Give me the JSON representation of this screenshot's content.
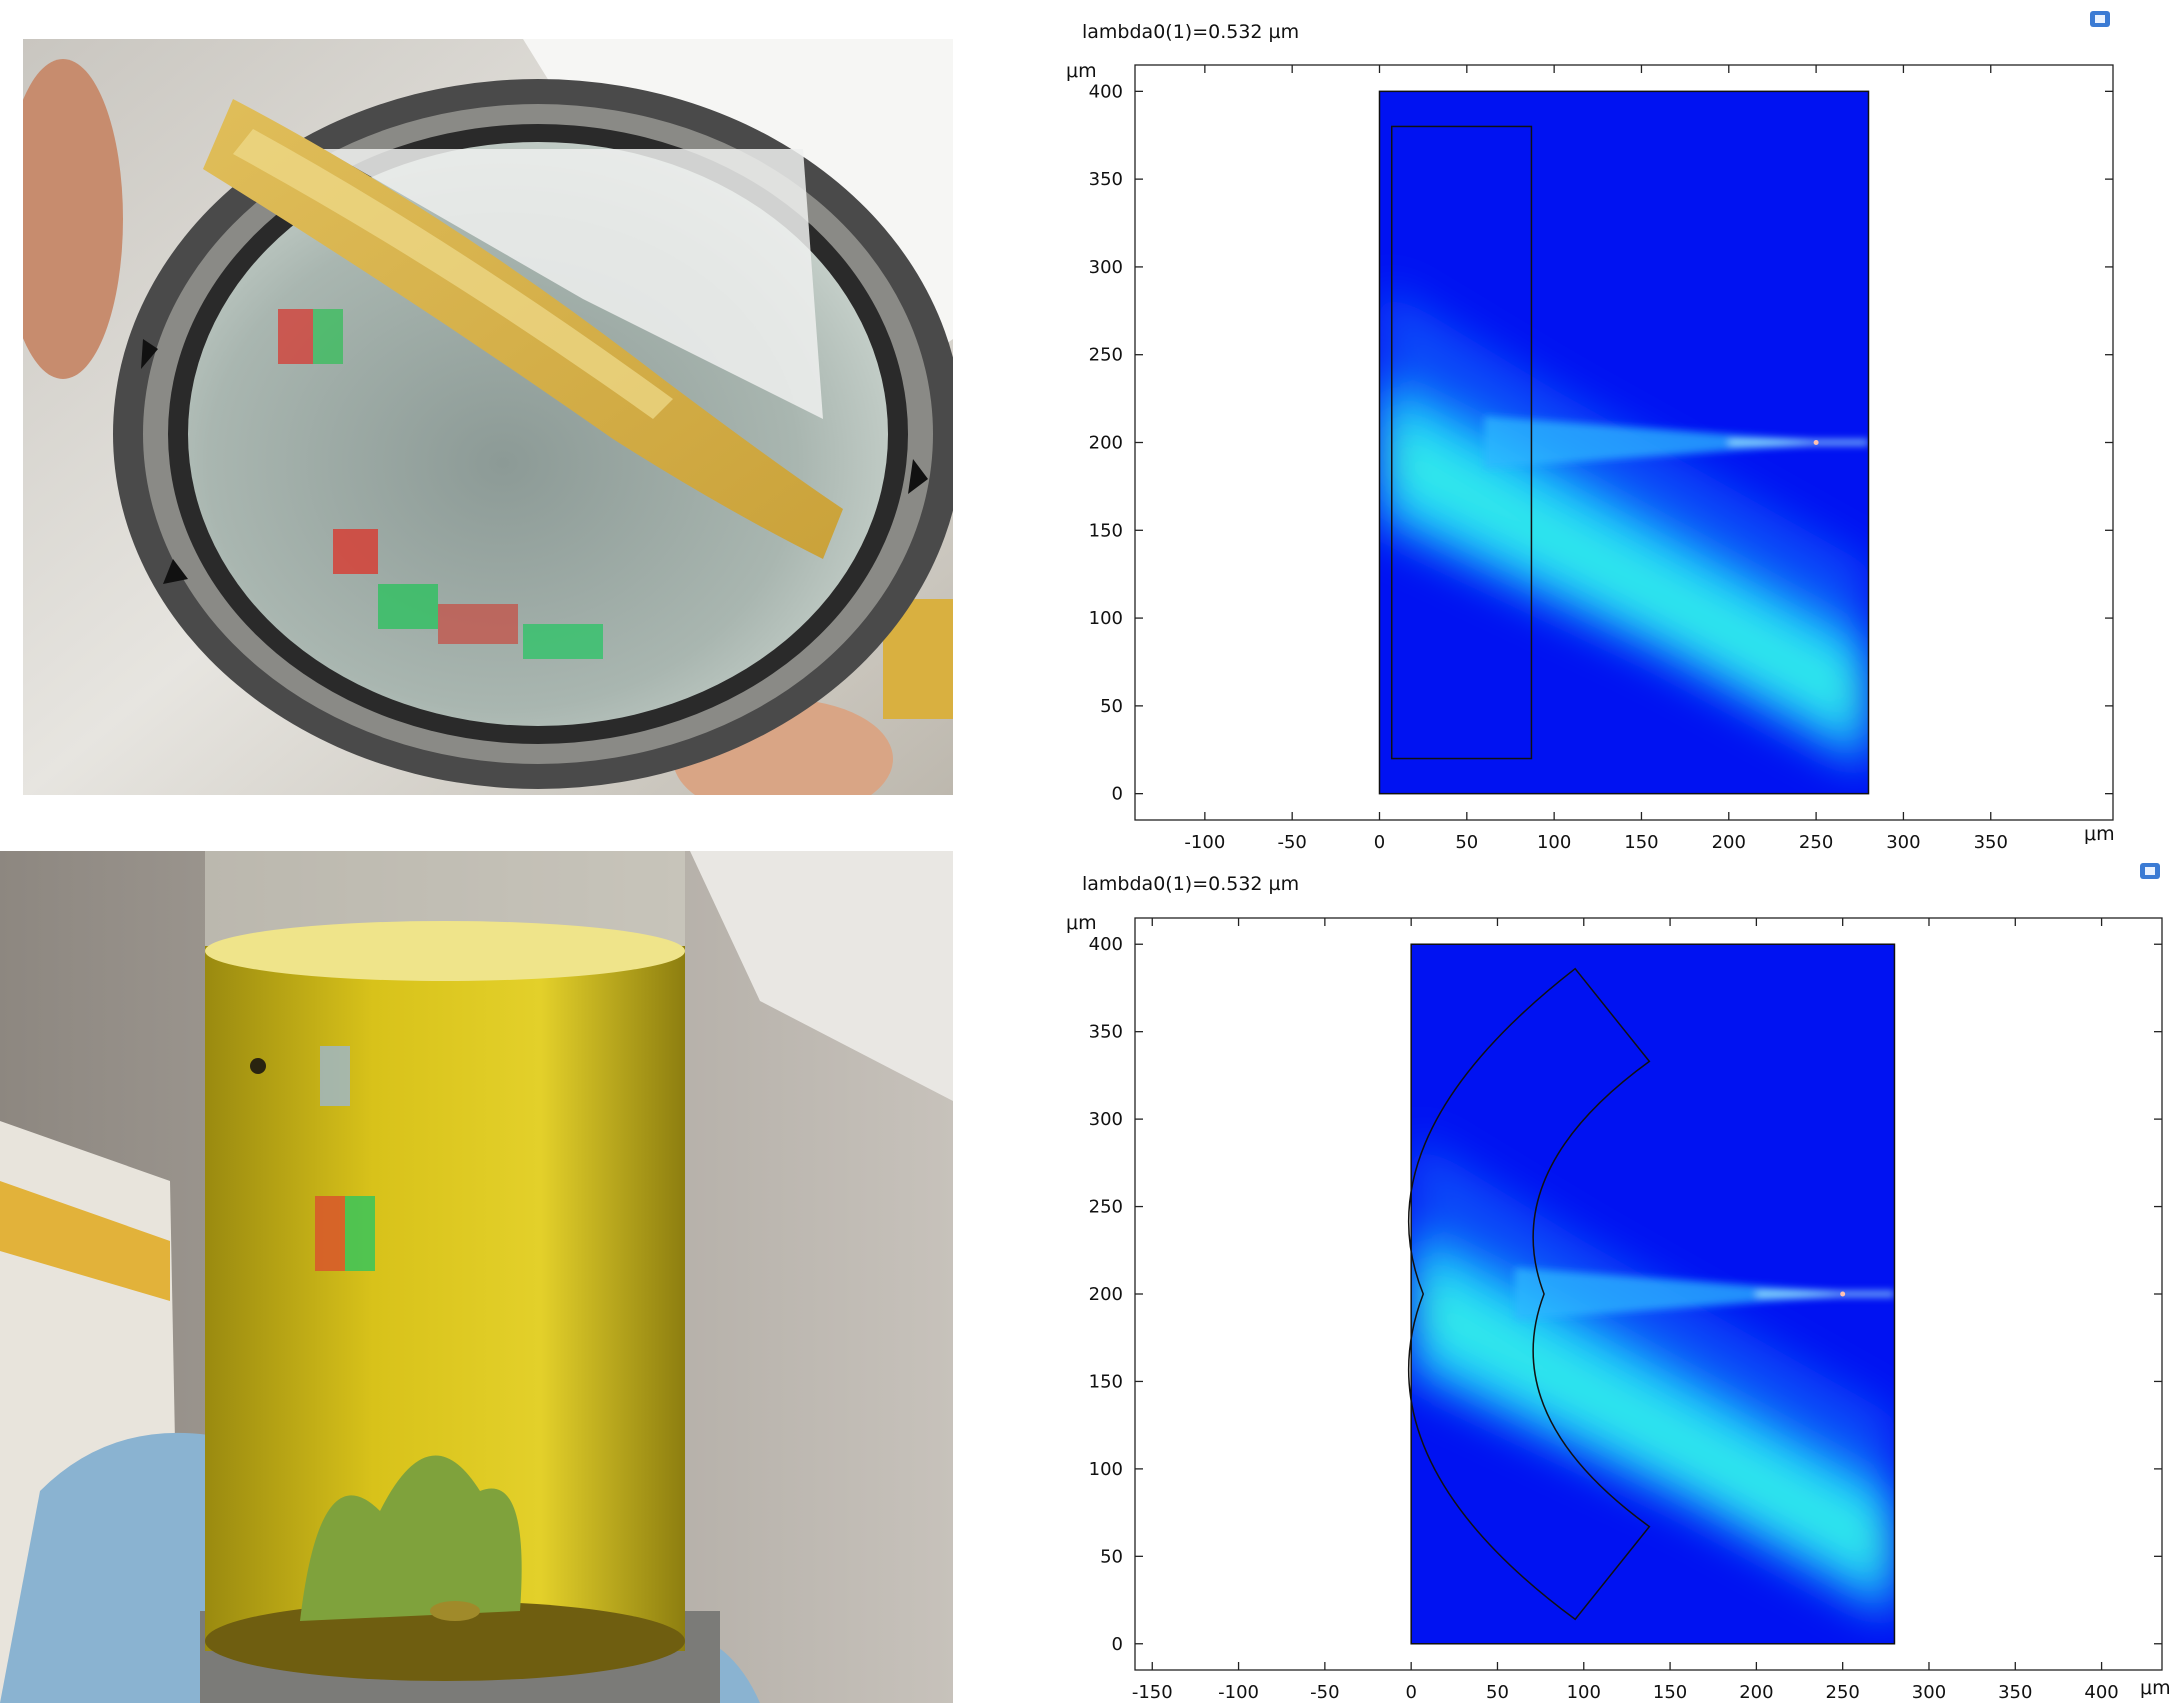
{
  "photos": {
    "top": {
      "subject": "circular metal-framed optical element with yellow sealant and red/green diffraction reflections"
    },
    "bottom": {
      "subject": "glass cylinder filled with yellow liquid held by gloved hand, red/green holographic patch"
    }
  },
  "plots": [
    {
      "title": "lambda0(1)=0.532 µm",
      "x_unit": "μm",
      "y_unit": "μm",
      "x_ticks": [
        "-100",
        "-50",
        "0",
        "50",
        "100",
        "150",
        "200",
        "250",
        "300",
        "350"
      ],
      "y_ticks": [
        "0",
        "50",
        "100",
        "150",
        "200",
        "250",
        "300",
        "350",
        "400"
      ],
      "xlim": [
        -140,
        420
      ],
      "ylim": [
        -15,
        415
      ],
      "domain": {
        "x": [
          0,
          280
        ],
        "y": [
          0,
          400
        ]
      },
      "element": "rectangle",
      "element_extent": {
        "x": [
          7,
          87
        ],
        "y": [
          20,
          380
        ]
      },
      "focus_point": [
        250,
        200
      ],
      "colormap": [
        "#0010f0",
        "#00ffff"
      ]
    },
    {
      "title": "lambda0(1)=0.532 µm",
      "x_unit": "μm",
      "y_unit": "μm",
      "x_ticks": [
        "-150",
        "-100",
        "-50",
        "0",
        "50",
        "100",
        "150",
        "200",
        "250",
        "300",
        "350",
        "400"
      ],
      "y_ticks": [
        "0",
        "50",
        "100",
        "150",
        "200",
        "250",
        "300",
        "350",
        "400"
      ],
      "xlim": [
        -160,
        435
      ],
      "ylim": [
        -15,
        415
      ],
      "domain": {
        "x": [
          0,
          280
        ],
        "y": [
          0,
          400
        ]
      },
      "element": "curved lens segment",
      "focus_point": [
        250,
        200
      ],
      "colormap": [
        "#0010f0",
        "#00ffff"
      ]
    }
  ],
  "colors": {
    "field_background": "#0012f2",
    "beam": "#20f0ff",
    "outline": "#111111"
  }
}
